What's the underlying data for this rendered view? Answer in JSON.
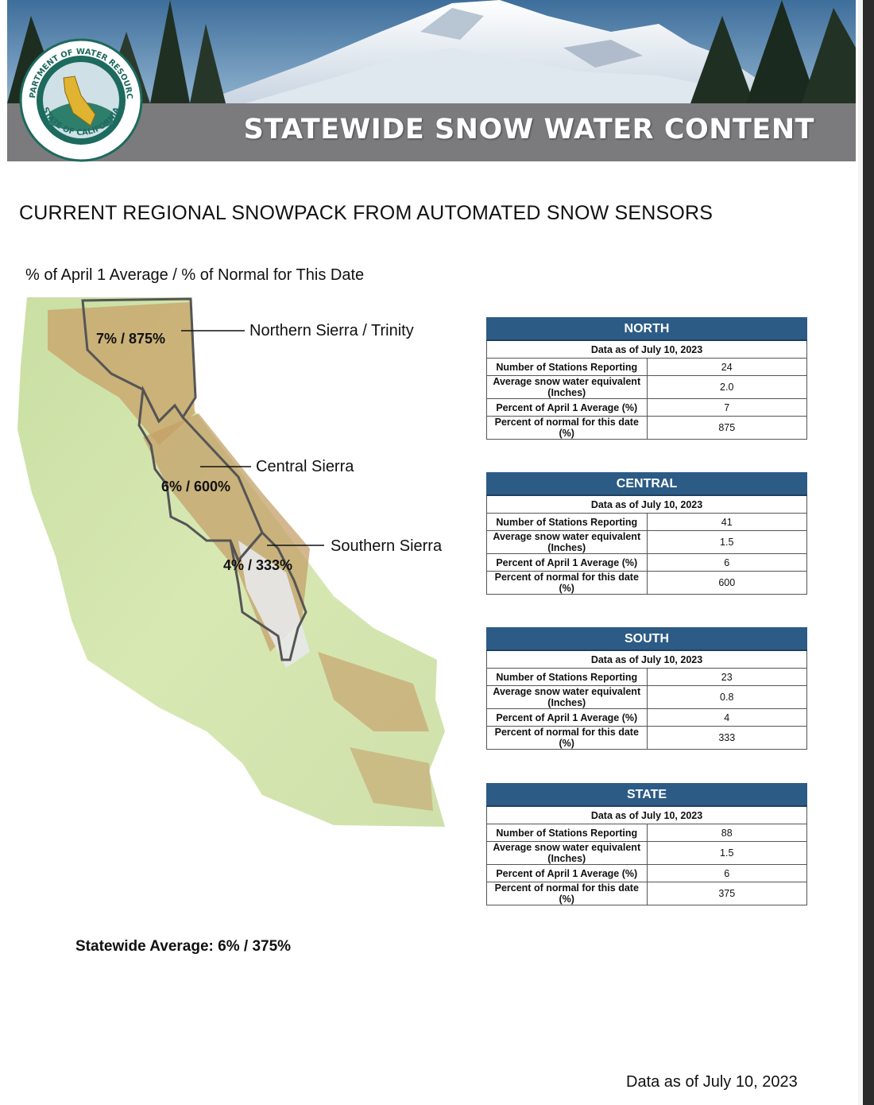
{
  "banner": {
    "title": "STATEWIDE SNOW WATER CONTENT"
  },
  "seal": {
    "top_text": "DEPARTMENT OF WATER RESOURCES",
    "bottom_text": "STATE OF CALIFORNIA",
    "colors": {
      "ring": "#1d6a5e",
      "gold": "#e0b330"
    }
  },
  "heading": "CURRENT REGIONAL SNOWPACK FROM AUTOMATED SNOW SENSORS",
  "subheading": "% of April 1 Average / % of Normal for This Date",
  "map_labels": {
    "north": {
      "region": "Northern Sierra / Trinity",
      "pct": "7% / 875%"
    },
    "central": {
      "region": "Central Sierra",
      "pct": "6% / 600%"
    },
    "south": {
      "region": "Southern Sierra",
      "pct": "4% / 333%"
    }
  },
  "tables": [
    {
      "title": "NORTH",
      "date": "Data as of July 10, 2023",
      "rows": [
        {
          "label": "Number of Stations Reporting",
          "value": "24"
        },
        {
          "label": "Average snow water equivalent (Inches)",
          "value": "2.0"
        },
        {
          "label": "Percent of April 1 Average (%)",
          "value": "7"
        },
        {
          "label": "Percent of normal for this date (%)",
          "value": "875"
        }
      ]
    },
    {
      "title": "CENTRAL",
      "date": "Data as of July 10, 2023",
      "rows": [
        {
          "label": "Number of Stations Reporting",
          "value": "41"
        },
        {
          "label": "Average snow water equivalent (Inches)",
          "value": "1.5"
        },
        {
          "label": "Percent of April 1 Average (%)",
          "value": "6"
        },
        {
          "label": "Percent of normal for this date (%)",
          "value": "600"
        }
      ]
    },
    {
      "title": "SOUTH",
      "date": "Data as of July 10, 2023",
      "rows": [
        {
          "label": "Number of Stations Reporting",
          "value": "23"
        },
        {
          "label": "Average snow water equivalent (Inches)",
          "value": "0.8"
        },
        {
          "label": "Percent of April 1 Average (%)",
          "value": "4"
        },
        {
          "label": "Percent of normal for this date (%)",
          "value": "333"
        }
      ]
    },
    {
      "title": "STATE",
      "date": "Data as of July 10, 2023",
      "rows": [
        {
          "label": "Number of Stations Reporting",
          "value": "88"
        },
        {
          "label": "Average snow water equivalent (Inches)",
          "value": "1.5"
        },
        {
          "label": "Percent of April 1 Average (%)",
          "value": "6"
        },
        {
          "label": "Percent of normal for this date (%)",
          "value": "375"
        }
      ]
    }
  ],
  "statewide_average": "Statewide Average: 6% / 375%",
  "footer_date": "Data as of July 10, 2023",
  "colors": {
    "table_header": "#2c5b86",
    "banner_bar": "#7b7b7d"
  }
}
